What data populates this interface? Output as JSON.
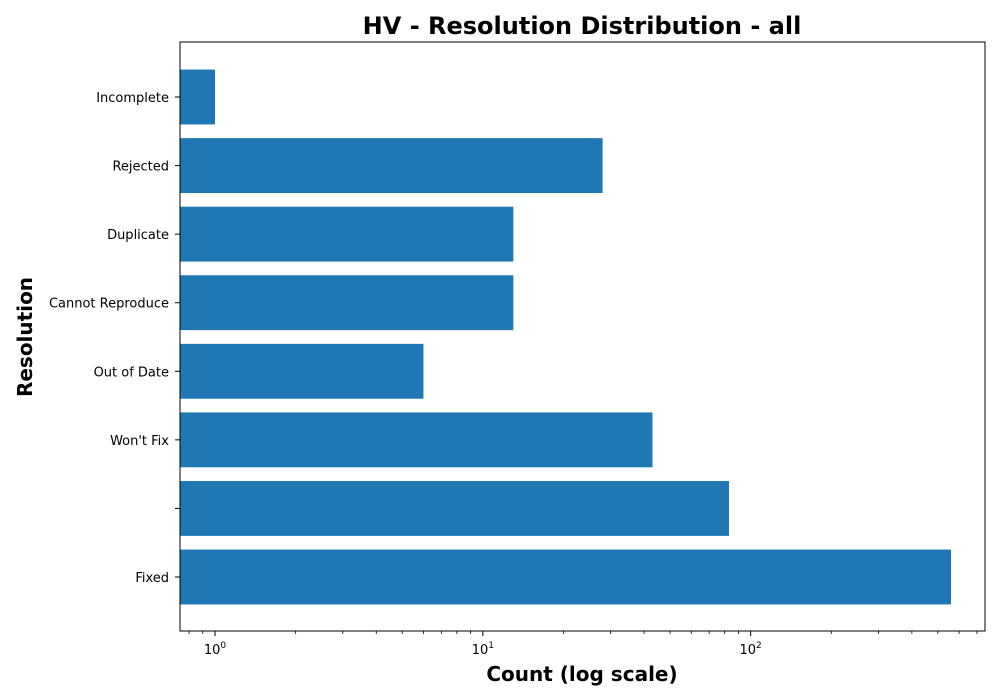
{
  "chart_data": {
    "type": "bar",
    "orientation": "horizontal",
    "title": "HV - Resolution Distribution - all",
    "xlabel": "Count (log scale)",
    "ylabel": "Resolution",
    "x_scale": "log",
    "xlim": [
      0.74,
      750
    ],
    "x_ticks": [
      {
        "base": "10",
        "exp": "0",
        "value": 1
      },
      {
        "base": "10",
        "exp": "1",
        "value": 10
      },
      {
        "base": "10",
        "exp": "2",
        "value": 100
      }
    ],
    "categories": [
      "Fixed",
      "",
      "Won't Fix",
      "Out of Date",
      "Cannot Reproduce",
      "Duplicate",
      "Rejected",
      "Incomplete"
    ],
    "values": [
      560,
      83,
      43,
      6,
      13,
      13,
      28,
      1
    ],
    "bar_color": "#1f77b4",
    "grid": false,
    "legend": "none"
  }
}
